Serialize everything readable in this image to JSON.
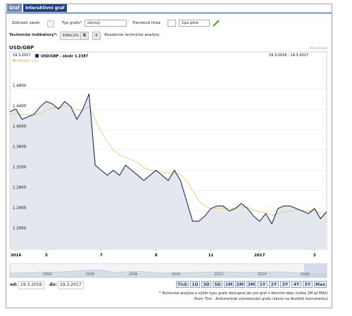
{
  "tabs": [
    "Graf",
    "Interaktivní graf"
  ],
  "toolbar": {
    "show_close": "Zobrazit závěr",
    "chart_type_label": "Typ grafu*",
    "chart_type_value": "čárový",
    "trend_label": "Trendová linka",
    "line_style": "1px plné"
  },
  "indicators": {
    "label": "Technické indikátory*:",
    "active": "EMA(20)",
    "remove": "X",
    "add": "+",
    "academy": "Akademie technické analýzy"
  },
  "instrument": "USD/GBP",
  "source": "Patria Online",
  "legend_date": "19.3.2017",
  "range_text": "19.3.2016 - 19.3.2017",
  "chart_data": {
    "type": "line",
    "categories": [
      null,
      "2016",
      null,
      null,
      null,
      null,
      "5",
      null,
      null,
      null,
      null,
      null,
      null,
      null,
      null,
      "7",
      null,
      null,
      null,
      null,
      null,
      null,
      null,
      null,
      "9",
      null,
      null,
      null,
      null,
      null,
      null,
      null,
      null,
      "11",
      null,
      null,
      null,
      null,
      null,
      null,
      null,
      "2017",
      null,
      null,
      null,
      null,
      null,
      null,
      null,
      null,
      "3",
      null,
      null
    ],
    "series": [
      {
        "name": "USD/GBP - závěr 1.2387",
        "color": "#1a2a5e",
        "fill": "#e4e8ee",
        "values": [
          1.435,
          1.44,
          1.42,
          1.425,
          1.43,
          1.445,
          1.455,
          1.45,
          1.44,
          1.455,
          1.445,
          1.42,
          1.44,
          1.47,
          1.33,
          1.32,
          1.31,
          1.32,
          1.31,
          1.33,
          1.32,
          1.31,
          1.3,
          1.31,
          1.32,
          1.31,
          1.3,
          1.32,
          1.3,
          1.26,
          1.22,
          1.22,
          1.23,
          1.245,
          1.25,
          1.25,
          1.24,
          1.245,
          1.255,
          1.245,
          1.23,
          1.22,
          1.235,
          1.215,
          1.245,
          1.25,
          1.25,
          1.245,
          1.24,
          1.235,
          1.245,
          1.225,
          1.2387
        ]
      },
      {
        "name": "EMA(20) 1.23",
        "color": "#e6cf8a",
        "values": [
          1.43,
          1.432,
          1.43,
          1.428,
          1.428,
          1.432,
          1.438,
          1.442,
          1.442,
          1.445,
          1.445,
          1.438,
          1.438,
          1.445,
          1.42,
          1.395,
          1.375,
          1.36,
          1.35,
          1.345,
          1.34,
          1.335,
          1.325,
          1.32,
          1.318,
          1.316,
          1.314,
          1.315,
          1.312,
          1.3,
          1.28,
          1.26,
          1.25,
          1.245,
          1.245,
          1.246,
          1.245,
          1.245,
          1.248,
          1.247,
          1.243,
          1.238,
          1.237,
          1.232,
          1.235,
          1.238,
          1.24,
          1.242,
          1.242,
          1.24,
          1.24,
          1.236,
          1.234
        ]
      }
    ],
    "ylim": [
      1.165,
      1.53
    ],
    "yticks": [
      {
        "value": 1.2,
        "label": "1.2000"
      },
      {
        "value": 1.24,
        "label": "1.2400"
      },
      {
        "value": 1.28,
        "label": "1.2800"
      },
      {
        "value": 1.32,
        "label": "1.3200"
      },
      {
        "value": 1.36,
        "label": "1.3600"
      },
      {
        "value": 1.4,
        "label": "1.4000"
      },
      {
        "value": 1.44,
        "label": "1.4400"
      },
      {
        "value": 1.48,
        "label": "1.4800"
      }
    ],
    "grid": true
  },
  "navigator_years": [
    "2004",
    "2006",
    "2008",
    "2010",
    "2012",
    "2014",
    "2016"
  ],
  "buttons": [
    "Tick",
    "1D",
    "3D",
    "5D",
    "1M",
    "2M",
    "3M",
    "1Y",
    "2Y",
    "3Y",
    "4Y",
    "5Y",
    "Max"
  ],
  "from_label": "od:",
  "from_value": "19.3.2016",
  "to_label": "do:",
  "to_value": "19.3.2017",
  "notes": [
    "* Technická analýza a výběr typu grafu dostupné jen pro graf s denními daty (volba 1M až MAX)",
    "Pozn: Tick - Automatické vykreslování grafu (závisí na likviditě instrumentu)"
  ]
}
